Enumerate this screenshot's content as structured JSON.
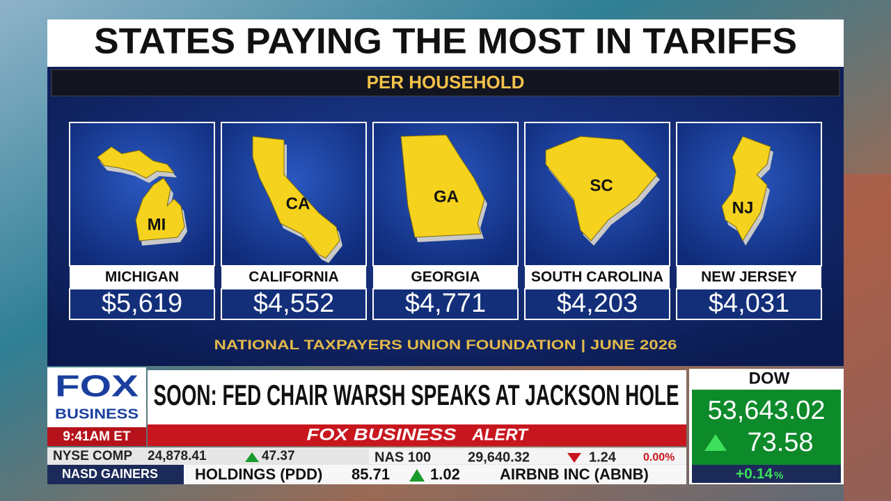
{
  "graphic": {
    "title": "STATES PAYING THE MOST IN TARIFFS",
    "subtitle": "PER HOUSEHOLD",
    "states": [
      {
        "abbr": "MI",
        "name": "MICHIGAN",
        "amount": "$5,619"
      },
      {
        "abbr": "CA",
        "name": "CALIFORNIA",
        "amount": "$4,552"
      },
      {
        "abbr": "GA",
        "name": "GEORGIA",
        "amount": "$4,771"
      },
      {
        "abbr": "SC",
        "name": "SOUTH CAROLINA",
        "amount": "$4,203"
      },
      {
        "abbr": "NJ",
        "name": "NEW JERSEY",
        "amount": "$4,031"
      }
    ],
    "source": "NATIONAL TAXPAYERS UNION FOUNDATION | JUNE 2026"
  },
  "lower_third": {
    "logo_top": "FOX",
    "logo_bottom": "BUSINESS",
    "time": "9:41AM ET",
    "headline": "SOON: FED CHAIR WARSH SPEAKS AT JACKSON HOLE",
    "alert_brand": "FOX BUSINESS",
    "alert_word": "ALERT"
  },
  "ticker": {
    "row1": [
      {
        "symbol": "NYSE COMP",
        "price": "24,878.41",
        "change": "47.37"
      },
      {
        "symbol": "NAS 100",
        "price": "29,640.32",
        "change": "1.24",
        "percent": "0.00%"
      }
    ],
    "row2": {
      "label": "NASD GAINERS",
      "items": [
        {
          "symbol": "HOLDINGS (PDD)",
          "price": "85.71",
          "change": "1.02"
        },
        {
          "symbol": "AIRBNB INC (ABNB)"
        }
      ]
    }
  },
  "dow": {
    "label": "DOW",
    "value": "53,643.02",
    "change": "73.58",
    "percent": "+0.14",
    "percent_sign": "%"
  }
}
